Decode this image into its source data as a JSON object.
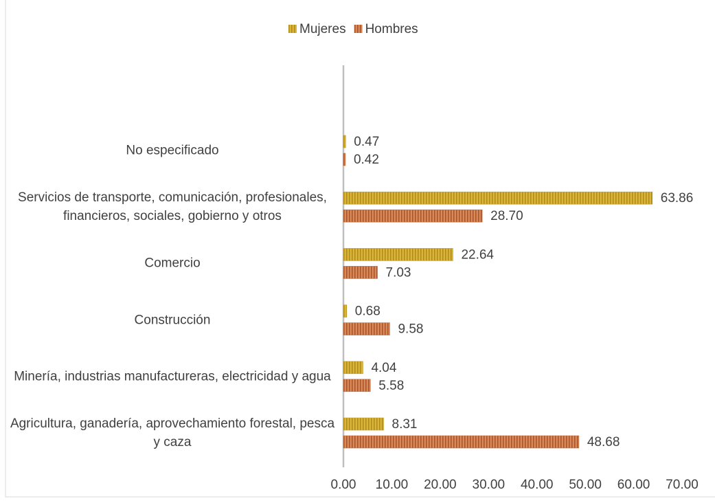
{
  "chart_data": {
    "type": "hbar",
    "categories": [
      "Agricultura, ganadería, aprovechamiento forestal, pesca y caza",
      "Minería, industrias manufactureras, electricidad y agua",
      "Construcción",
      "Comercio",
      "Servicios de transporte, comunicación, profesionales, financieros, sociales, gobierno y otros",
      "No especificado"
    ],
    "series": [
      {
        "name": "Mujeres",
        "color": "#c9a227",
        "values": [
          8.31,
          4.04,
          0.68,
          22.64,
          63.86,
          0.47
        ],
        "value_labels": [
          "8.31",
          "4.04",
          "0.68",
          "22.64",
          "63.86",
          "0.47"
        ]
      },
      {
        "name": "Hombres",
        "color": "#c2703f",
        "values": [
          48.68,
          5.58,
          9.58,
          7.03,
          28.7,
          0.42
        ],
        "value_labels": [
          "48.68",
          "5.58",
          "9.58",
          "7.03",
          "28.70",
          "0.42"
        ]
      }
    ],
    "xlim": [
      0,
      70
    ],
    "xticks": [
      {
        "value": 0,
        "label": "0.00"
      },
      {
        "value": 10,
        "label": "10.00"
      },
      {
        "value": 20,
        "label": "20.00"
      },
      {
        "value": 30,
        "label": "30.00"
      },
      {
        "value": 40,
        "label": "40.00"
      },
      {
        "value": 50,
        "label": "50.00"
      },
      {
        "value": 60,
        "label": "60.00"
      },
      {
        "value": 70,
        "label": "70.00"
      }
    ],
    "legend": "top"
  }
}
